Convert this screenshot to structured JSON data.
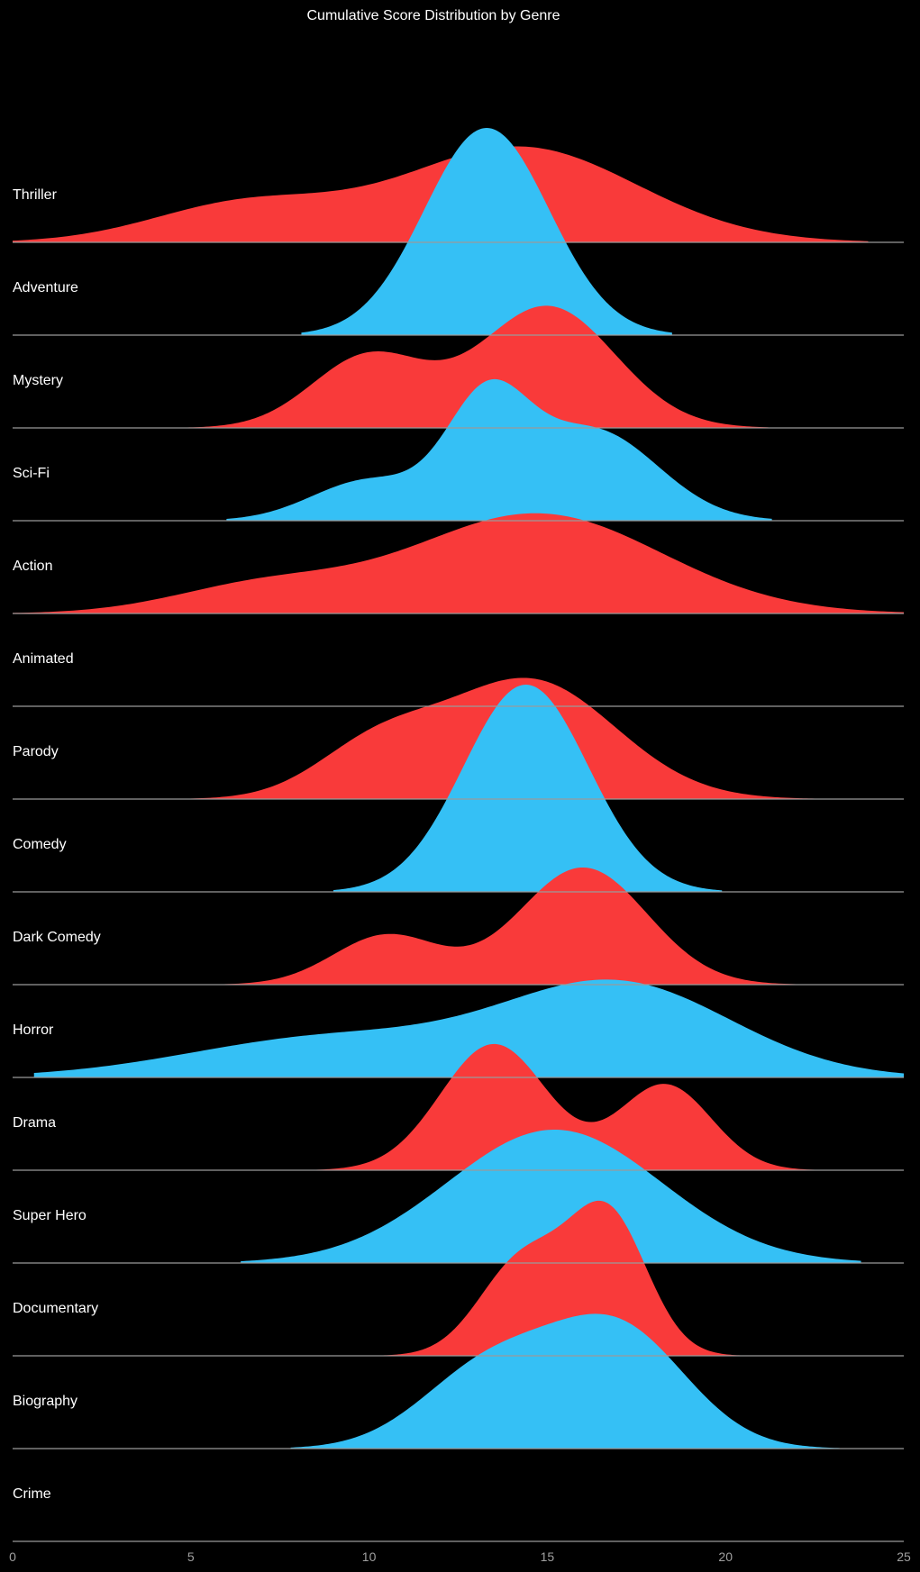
{
  "chart_data": {
    "type": "area",
    "title": "Cumulative Score Distribution by Genre",
    "xlabel": "",
    "ylabel": "",
    "xlim": [
      0,
      25
    ],
    "x_ticks": [
      0,
      5,
      10,
      15,
      20,
      25
    ],
    "x_tick_labels": [
      "0",
      "5",
      "10",
      "15",
      "20",
      "25"
    ],
    "legend": "none",
    "grid": false,
    "colors": {
      "red": "#f93a3a",
      "blue": "#35c0f5",
      "baseline": "#9a9a9a",
      "background": "#000000"
    },
    "ridges": [
      {
        "name": "Thriller",
        "color": "red",
        "range": [
          0,
          24
        ],
        "peaks": [
          {
            "mu": 6.5,
            "s": 2.6,
            "a": 0.42
          },
          {
            "mu": 14.2,
            "s": 3.3,
            "a": 1.06
          }
        ]
      },
      {
        "name": "Adventure",
        "color": "blue",
        "range": [
          8.1,
          18.5
        ],
        "peaks": [
          {
            "mu": 13.3,
            "s": 1.75,
            "a": 2.3
          }
        ]
      },
      {
        "name": "Mystery",
        "color": "red",
        "range": [
          4.6,
          21.2
        ],
        "peaks": [
          {
            "mu": 10.0,
            "s": 1.6,
            "a": 0.8
          },
          {
            "mu": 15.0,
            "s": 1.9,
            "a": 1.35
          }
        ]
      },
      {
        "name": "Sci-Fi",
        "color": "blue",
        "range": [
          6.0,
          21.3
        ],
        "peaks": [
          {
            "mu": 10.0,
            "s": 1.6,
            "a": 0.45
          },
          {
            "mu": 13.3,
            "s": 1.15,
            "a": 1.25
          },
          {
            "mu": 16.3,
            "s": 1.8,
            "a": 1.0
          }
        ]
      },
      {
        "name": "Action",
        "color": "red",
        "range": [
          0,
          25
        ],
        "peaks": [
          {
            "mu": 7.0,
            "s": 2.5,
            "a": 0.3
          },
          {
            "mu": 14.7,
            "s": 3.5,
            "a": 1.11
          }
        ]
      },
      {
        "name": "Animated",
        "color": "blue",
        "range": [
          0,
          0
        ],
        "peaks": []
      },
      {
        "name": "Parody",
        "color": "red",
        "range": [
          4.9,
          22.5
        ],
        "peaks": [
          {
            "mu": 10.2,
            "s": 1.7,
            "a": 0.55
          },
          {
            "mu": 14.5,
            "s": 2.4,
            "a": 1.32
          }
        ]
      },
      {
        "name": "Comedy",
        "color": "blue",
        "range": [
          9.0,
          19.9
        ],
        "peaks": [
          {
            "mu": 14.4,
            "s": 1.75,
            "a": 2.3
          }
        ]
      },
      {
        "name": "Dark Comedy",
        "color": "red",
        "range": [
          5.5,
          24.0
        ],
        "peaks": [
          {
            "mu": 10.5,
            "s": 1.5,
            "a": 0.55
          },
          {
            "mu": 16.0,
            "s": 1.8,
            "a": 1.3
          }
        ]
      },
      {
        "name": "Horror",
        "color": "blue",
        "range": [
          0.6,
          25
        ],
        "peaks": [
          {
            "mu": 9.0,
            "s": 4.0,
            "a": 0.45
          },
          {
            "mu": 17.0,
            "s": 3.2,
            "a": 1.02
          }
        ]
      },
      {
        "name": "Drama",
        "color": "red",
        "range": [
          6.5,
          23.5
        ],
        "peaks": [
          {
            "mu": 13.5,
            "s": 1.5,
            "a": 1.4
          },
          {
            "mu": 18.3,
            "s": 1.3,
            "a": 0.95
          }
        ]
      },
      {
        "name": "Super Hero",
        "color": "blue",
        "range": [
          6.4,
          23.8
        ],
        "peaks": [
          {
            "mu": 15.2,
            "s": 3.0,
            "a": 1.48
          }
        ]
      },
      {
        "name": "Documentary",
        "color": "red",
        "range": [
          10.3,
          20.8
        ],
        "peaks": [
          {
            "mu": 14.3,
            "s": 1.2,
            "a": 1.05
          },
          {
            "mu": 16.7,
            "s": 1.1,
            "a": 1.55
          }
        ]
      },
      {
        "name": "Biography",
        "color": "blue",
        "range": [
          7.8,
          23.2
        ],
        "peaks": [
          {
            "mu": 13.4,
            "s": 1.9,
            "a": 0.9
          },
          {
            "mu": 17.0,
            "s": 1.9,
            "a": 1.3
          }
        ]
      },
      {
        "name": "Crime",
        "color": "red",
        "range": [
          0,
          0
        ],
        "peaks": []
      }
    ]
  }
}
